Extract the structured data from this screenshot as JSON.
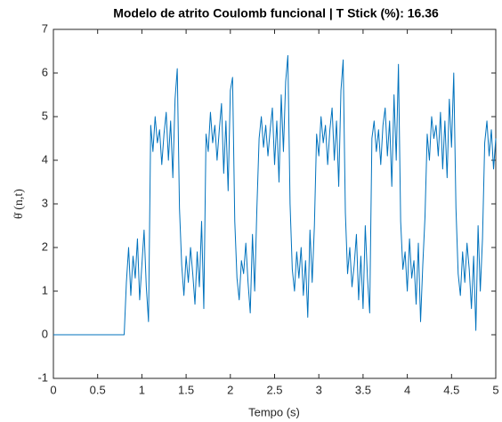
{
  "chart_data": {
    "type": "line",
    "title": "Modelo de atrito Coulomb funcional | T Stick (%): 16.36",
    "xlabel": "Tempo (s)",
    "ylabel": "θ̇ (n,t)",
    "xlim": [
      0,
      5
    ],
    "ylim": [
      -1,
      7
    ],
    "xticks": [
      0,
      0.5,
      1,
      1.5,
      2,
      2.5,
      3,
      3.5,
      4,
      4.5,
      5
    ],
    "yticks": [
      -1,
      0,
      1,
      2,
      3,
      4,
      5,
      6,
      7
    ],
    "grid": false,
    "x": [
      0,
      0.025,
      0.05,
      0.075,
      0.1,
      0.125,
      0.15,
      0.175,
      0.2,
      0.225,
      0.25,
      0.275,
      0.3,
      0.325,
      0.35,
      0.375,
      0.4,
      0.425,
      0.45,
      0.475,
      0.5,
      0.525,
      0.55,
      0.575,
      0.6,
      0.625,
      0.65,
      0.675,
      0.7,
      0.725,
      0.75,
      0.775,
      0.8,
      0.825,
      0.85,
      0.875,
      0.9,
      0.925,
      0.95,
      0.975,
      1,
      1.025,
      1.05,
      1.075,
      1.1,
      1.125,
      1.15,
      1.175,
      1.2,
      1.225,
      1.25,
      1.275,
      1.3,
      1.325,
      1.35,
      1.375,
      1.4,
      1.425,
      1.45,
      1.475,
      1.5,
      1.525,
      1.55,
      1.575,
      1.6,
      1.625,
      1.65,
      1.675,
      1.7,
      1.725,
      1.75,
      1.775,
      1.8,
      1.825,
      1.85,
      1.875,
      1.9,
      1.925,
      1.95,
      1.975,
      2,
      2.025,
      2.05,
      2.075,
      2.1,
      2.125,
      2.15,
      2.175,
      2.2,
      2.225,
      2.25,
      2.275,
      2.3,
      2.325,
      2.35,
      2.375,
      2.4,
      2.425,
      2.45,
      2.475,
      2.5,
      2.525,
      2.55,
      2.575,
      2.6,
      2.625,
      2.65,
      2.675,
      2.7,
      2.725,
      2.75,
      2.775,
      2.8,
      2.825,
      2.85,
      2.875,
      2.9,
      2.925,
      2.95,
      2.975,
      3,
      3.025,
      3.05,
      3.075,
      3.1,
      3.125,
      3.15,
      3.175,
      3.2,
      3.225,
      3.25,
      3.275,
      3.3,
      3.325,
      3.35,
      3.375,
      3.4,
      3.425,
      3.45,
      3.475,
      3.5,
      3.525,
      3.55,
      3.575,
      3.6,
      3.625,
      3.65,
      3.675,
      3.7,
      3.725,
      3.75,
      3.775,
      3.8,
      3.825,
      3.85,
      3.875,
      3.9,
      3.925,
      3.95,
      3.975,
      4,
      4.025,
      4.05,
      4.075,
      4.1,
      4.125,
      4.15,
      4.175,
      4.2,
      4.225,
      4.25,
      4.275,
      4.3,
      4.325,
      4.35,
      4.375,
      4.4,
      4.425,
      4.45,
      4.475,
      4.5,
      4.525,
      4.55,
      4.575,
      4.6,
      4.625,
      4.65,
      4.675,
      4.7,
      4.725,
      4.75,
      4.775,
      4.8,
      4.825,
      4.85,
      4.875,
      4.9,
      4.925,
      4.95,
      4.975,
      5
    ],
    "series": [
      {
        "color": "#0072bd",
        "values": [
          0,
          0,
          0,
          0,
          0,
          0,
          0,
          0,
          0,
          0,
          0,
          0,
          0,
          0,
          0,
          0,
          0,
          0,
          0,
          0,
          0,
          0,
          0,
          0,
          0,
          0,
          0,
          0,
          0,
          0,
          0,
          0,
          0,
          1.2,
          2.0,
          0.9,
          1.8,
          1.3,
          2.2,
          0.8,
          1.6,
          2.4,
          1.1,
          0.3,
          4.8,
          4.2,
          5.0,
          4.4,
          4.7,
          3.9,
          4.6,
          5.1,
          4.0,
          4.9,
          3.6,
          5.4,
          6.1,
          2.9,
          1.6,
          0.9,
          1.8,
          1.2,
          2.0,
          1.4,
          0.7,
          1.9,
          1.1,
          2.6,
          0.6,
          4.6,
          4.2,
          5.1,
          4.4,
          4.8,
          4.0,
          4.7,
          5.3,
          3.7,
          4.9,
          3.3,
          5.6,
          5.9,
          2.6,
          1.3,
          0.8,
          1.7,
          1.4,
          2.1,
          1.2,
          0.5,
          2.3,
          1.0,
          2.9,
          4.5,
          5.0,
          4.3,
          4.8,
          4.1,
          4.7,
          5.2,
          3.9,
          4.9,
          3.5,
          5.5,
          4.2,
          5.8,
          6.4,
          3.0,
          1.5,
          1.0,
          1.9,
          1.3,
          2.0,
          0.9,
          1.7,
          0.4,
          2.4,
          1.2,
          2.5,
          4.6,
          4.1,
          5.0,
          4.4,
          4.8,
          3.9,
          4.7,
          5.2,
          4.0,
          4.9,
          3.4,
          5.6,
          6.3,
          2.8,
          1.4,
          2.0,
          1.1,
          1.6,
          2.3,
          0.8,
          1.8,
          0.6,
          2.5,
          1.3,
          0.5,
          4.5,
          4.9,
          4.2,
          4.7,
          3.9,
          4.8,
          5.2,
          4.1,
          4.9,
          3.4,
          5.5,
          4.0,
          6.2,
          2.6,
          1.5,
          1.9,
          1.0,
          2.2,
          1.3,
          1.7,
          0.7,
          2.1,
          0.3,
          1.6,
          2.7,
          4.6,
          4.0,
          5.0,
          4.5,
          4.8,
          4.1,
          5.1,
          3.8,
          4.9,
          3.6,
          5.4,
          4.3,
          6.0,
          2.9,
          1.4,
          0.9,
          1.9,
          1.2,
          2.1,
          1.5,
          0.6,
          1.8,
          0.1,
          2.5,
          1.0,
          2.2,
          4.4,
          4.9,
          4.1,
          4.7,
          3.8,
          4.5
        ]
      }
    ]
  }
}
